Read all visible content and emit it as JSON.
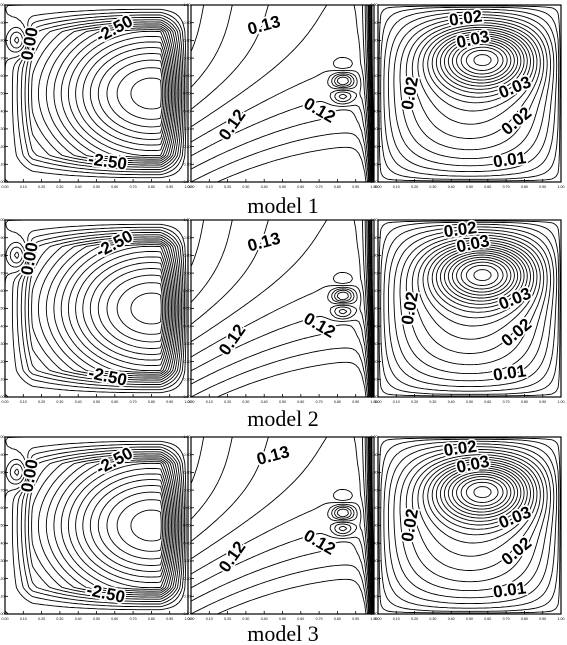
{
  "axis_ticks": {
    "x": [
      "0.00",
      "0.10",
      "0.20",
      "0.30",
      "0.40",
      "0.50",
      "0.60",
      "0.70",
      "0.80",
      "0.90",
      "1.00"
    ],
    "y": [
      "0.00",
      "0.10",
      "0.20",
      "0.30",
      "0.40",
      "0.50",
      "0.60",
      "0.70",
      "0.80",
      "0.90",
      "1.00"
    ]
  },
  "rows": [
    {
      "caption": "model 1",
      "panels": [
        {
          "kind": "streamfunction",
          "labels": [
            {
              "text": "0.00",
              "u": 0.14,
              "v": 0.78,
              "rot": -80
            },
            {
              "text": "-2.50",
              "u": 0.6,
              "v": 0.86,
              "rot": -28
            },
            {
              "text": "-2.50",
              "u": 0.56,
              "v": 0.11,
              "rot": 8
            }
          ]
        },
        {
          "kind": "vorticity",
          "labels": [
            {
              "text": "0.13",
              "u": 0.4,
              "v": 0.88,
              "rot": -15
            },
            {
              "text": "0.12",
              "u": 0.7,
              "v": 0.4,
              "rot": 30
            },
            {
              "text": "0.12",
              "u": 0.23,
              "v": 0.32,
              "rot": -55
            }
          ]
        },
        {
          "kind": "temperature",
          "labels": [
            {
              "text": "0.02",
              "u": 0.48,
              "v": 0.92,
              "rot": -8
            },
            {
              "text": "0.03",
              "u": 0.52,
              "v": 0.8,
              "rot": -12
            },
            {
              "text": "0.03",
              "u": 0.75,
              "v": 0.53,
              "rot": -22
            },
            {
              "text": "0.02",
              "u": 0.18,
              "v": 0.5,
              "rot": -80
            },
            {
              "text": "0.02",
              "u": 0.76,
              "v": 0.34,
              "rot": -40
            },
            {
              "text": "0.01",
              "u": 0.72,
              "v": 0.12,
              "rot": -8
            }
          ]
        }
      ]
    },
    {
      "caption": "model 2",
      "panels": [
        {
          "kind": "streamfunction",
          "labels": [
            {
              "text": "0.00",
              "u": 0.14,
              "v": 0.78,
              "rot": -80
            },
            {
              "text": "-2.50",
              "u": 0.6,
              "v": 0.86,
              "rot": -28
            },
            {
              "text": "-2.50",
              "u": 0.56,
              "v": 0.11,
              "rot": 12
            }
          ]
        },
        {
          "kind": "vorticity",
          "labels": [
            {
              "text": "0.13",
              "u": 0.4,
              "v": 0.87,
              "rot": -15
            },
            {
              "text": "0.12",
              "u": 0.7,
              "v": 0.4,
              "rot": 30
            },
            {
              "text": "0.12",
              "u": 0.23,
              "v": 0.32,
              "rot": -55
            }
          ]
        },
        {
          "kind": "temperature",
          "labels": [
            {
              "text": "0.02",
              "u": 0.45,
              "v": 0.94,
              "rot": -8
            },
            {
              "text": "0.03",
              "u": 0.52,
              "v": 0.86,
              "rot": -12
            },
            {
              "text": "0.03",
              "u": 0.75,
              "v": 0.55,
              "rot": -22
            },
            {
              "text": "0.02",
              "u": 0.18,
              "v": 0.5,
              "rot": -80
            },
            {
              "text": "0.02",
              "u": 0.76,
              "v": 0.36,
              "rot": -40
            },
            {
              "text": "0.01",
              "u": 0.72,
              "v": 0.13,
              "rot": -8
            }
          ]
        }
      ]
    },
    {
      "caption": "model 3",
      "panels": [
        {
          "kind": "streamfunction",
          "labels": [
            {
              "text": "0.00",
              "u": 0.14,
              "v": 0.78,
              "rot": -80
            },
            {
              "text": "-2.50",
              "u": 0.6,
              "v": 0.86,
              "rot": -28
            },
            {
              "text": "-2.50",
              "u": 0.55,
              "v": 0.11,
              "rot": 12
            }
          ]
        },
        {
          "kind": "vorticity",
          "labels": [
            {
              "text": "0.13",
              "u": 0.45,
              "v": 0.89,
              "rot": -15
            },
            {
              "text": "0.12",
              "u": 0.7,
              "v": 0.4,
              "rot": 30
            },
            {
              "text": "0.12",
              "u": 0.23,
              "v": 0.32,
              "rot": -55
            }
          ]
        },
        {
          "kind": "temperature",
          "labels": [
            {
              "text": "0.02",
              "u": 0.45,
              "v": 0.93,
              "rot": -8
            },
            {
              "text": "0.03",
              "u": 0.52,
              "v": 0.84,
              "rot": -12
            },
            {
              "text": "0.03",
              "u": 0.75,
              "v": 0.54,
              "rot": -22
            },
            {
              "text": "0.02",
              "u": 0.18,
              "v": 0.5,
              "rot": -80
            },
            {
              "text": "0.02",
              "u": 0.76,
              "v": 0.35,
              "rot": -40
            },
            {
              "text": "0.01",
              "u": 0.72,
              "v": 0.13,
              "rot": -8
            }
          ]
        }
      ]
    }
  ]
}
